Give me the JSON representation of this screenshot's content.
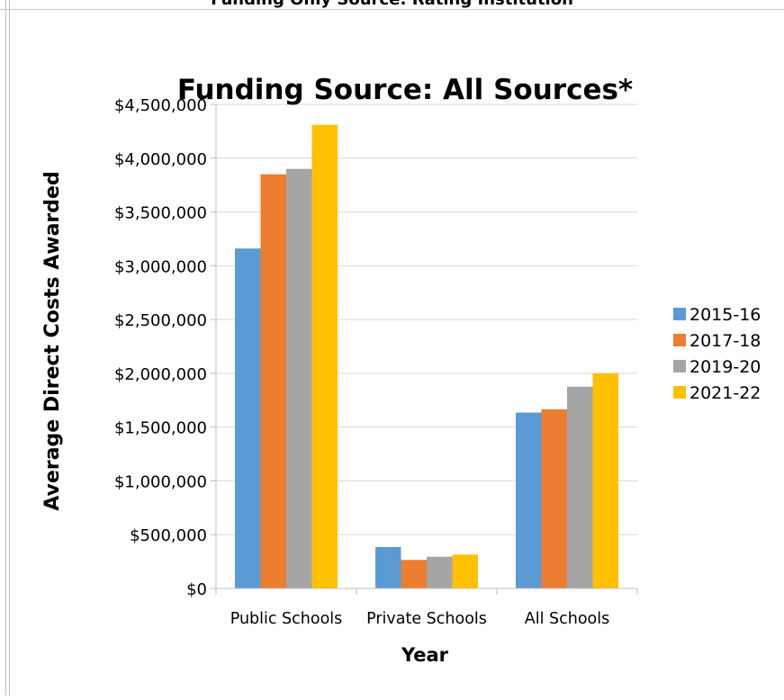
{
  "header": {
    "title": "Funding Only Source: Rating Institution"
  },
  "chart_data": {
    "type": "bar",
    "title": "Funding Source: All Sources*",
    "xlabel": "Year",
    "ylabel": "Average Direct Costs Awarded",
    "categories": [
      "Public Schools",
      "Private Schools",
      "All Schools"
    ],
    "series": [
      {
        "name": "2015-16",
        "values": [
          3160000,
          385000,
          1635000
        ]
      },
      {
        "name": "2017-18",
        "values": [
          3850000,
          265000,
          1665000
        ]
      },
      {
        "name": "2019-20",
        "values": [
          3900000,
          295000,
          1875000
        ]
      },
      {
        "name": "2021-22",
        "values": [
          4310000,
          315000,
          2000000
        ]
      }
    ],
    "ylim": [
      0,
      4500000
    ],
    "yticks": [
      0,
      500000,
      1000000,
      1500000,
      2000000,
      2500000,
      3000000,
      3500000,
      4000000,
      4500000
    ],
    "ytick_labels": [
      "$0",
      "$500,000",
      "$1,000,000",
      "$1,500,000",
      "$2,000,000",
      "$2,500,000",
      "$3,000,000",
      "$3,500,000",
      "$4,000,000",
      "$4,500,000"
    ],
    "grid": true,
    "legend_position": "right",
    "colors": [
      "#5b9bd5",
      "#ed7d31",
      "#a5a5a5",
      "#ffc000"
    ]
  }
}
